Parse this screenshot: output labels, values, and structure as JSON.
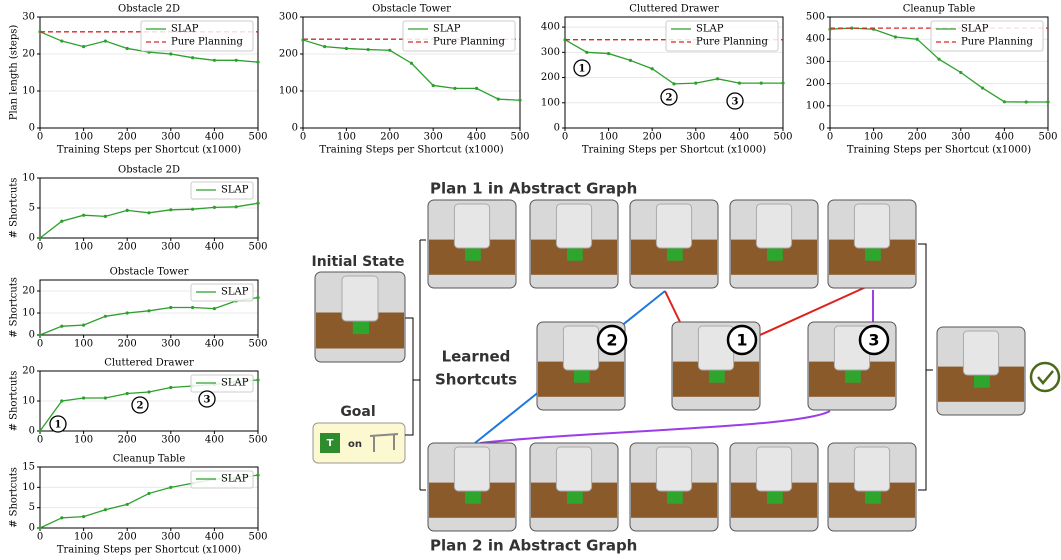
{
  "chart_data": [
    {
      "type": "line",
      "title": "Obstacle 2D",
      "xlabel": "Training Steps per Shortcut (x1000)",
      "ylabel": "Plan length (steps)",
      "x": [
        0,
        50,
        100,
        150,
        200,
        250,
        300,
        350,
        400,
        450,
        500
      ],
      "xlim": [
        0,
        500
      ],
      "xticks": [
        0,
        100,
        200,
        300,
        400,
        500
      ],
      "ylim": [
        0,
        30
      ],
      "yticks": [
        0,
        10,
        20,
        30
      ],
      "grid": true,
      "legend": "upper right",
      "series": [
        {
          "name": "SLAP",
          "color": "#2ca02c",
          "markers": true,
          "values": [
            26,
            23.5,
            22,
            23.5,
            21.5,
            20.5,
            20,
            19,
            18.3,
            18.3,
            17.8
          ]
        },
        {
          "name": "Pure Planning",
          "color": "#d62728",
          "dashed": true,
          "values": [
            26,
            26,
            26,
            26,
            26,
            26,
            26,
            26,
            26,
            26,
            26
          ]
        }
      ]
    },
    {
      "type": "line",
      "title": "Obstacle Tower",
      "xlabel": "Training Steps per Shortcut (x1000)",
      "x": [
        0,
        50,
        100,
        150,
        200,
        250,
        300,
        350,
        400,
        450,
        500
      ],
      "xlim": [
        0,
        500
      ],
      "xticks": [
        0,
        100,
        200,
        300,
        400,
        500
      ],
      "ylim": [
        0,
        300
      ],
      "yticks": [
        0,
        100,
        200,
        300
      ],
      "grid": true,
      "legend": "upper right",
      "series": [
        {
          "name": "SLAP",
          "color": "#2ca02c",
          "markers": true,
          "values": [
            238,
            220,
            215,
            212,
            210,
            175,
            115,
            107,
            107,
            78,
            75
          ]
        },
        {
          "name": "Pure Planning",
          "color": "#d62728",
          "dashed": true,
          "values": [
            240,
            240,
            240,
            240,
            240,
            240,
            240,
            240,
            240,
            240,
            240
          ]
        }
      ]
    },
    {
      "type": "line",
      "title": "Cluttered Drawer",
      "xlabel": "Training Steps per Shortcut (x1000)",
      "x": [
        0,
        50,
        100,
        150,
        200,
        250,
        300,
        350,
        400,
        450,
        500
      ],
      "xlim": [
        0,
        500
      ],
      "xticks": [
        0,
        100,
        200,
        300,
        400,
        500
      ],
      "ylim": [
        0,
        440
      ],
      "yticks": [
        0,
        100,
        200,
        300,
        400
      ],
      "grid": true,
      "legend": "upper right",
      "annotations": [
        "1",
        "2",
        "3"
      ],
      "series": [
        {
          "name": "SLAP",
          "color": "#2ca02c",
          "markers": true,
          "values": [
            350,
            300,
            295,
            268,
            235,
            175,
            178,
            195,
            178,
            178,
            178
          ]
        },
        {
          "name": "Pure Planning",
          "color": "#d62728",
          "dashed": true,
          "values": [
            350,
            350,
            350,
            350,
            350,
            350,
            350,
            350,
            350,
            350,
            350
          ]
        }
      ]
    },
    {
      "type": "line",
      "title": "Cleanup Table",
      "xlabel": "Training Steps per Shortcut (x1000)",
      "x": [
        0,
        50,
        100,
        150,
        200,
        250,
        300,
        350,
        400,
        450,
        500
      ],
      "xlim": [
        0,
        500
      ],
      "xticks": [
        0,
        100,
        200,
        300,
        400,
        500
      ],
      "ylim": [
        0,
        500
      ],
      "yticks": [
        0,
        100,
        200,
        300,
        400,
        500
      ],
      "grid": true,
      "legend": "upper right",
      "series": [
        {
          "name": "SLAP",
          "color": "#2ca02c",
          "markers": true,
          "values": [
            445,
            450,
            445,
            410,
            400,
            310,
            250,
            180,
            118,
            117,
            117
          ]
        },
        {
          "name": "Pure Planning",
          "color": "#d62728",
          "dashed": true,
          "values": [
            450,
            450,
            450,
            450,
            450,
            450,
            450,
            450,
            450,
            450,
            450
          ]
        }
      ]
    },
    {
      "type": "line",
      "title": "Obstacle 2D",
      "ylabel": "# Shortcuts",
      "x": [
        0,
        50,
        100,
        150,
        200,
        250,
        300,
        350,
        400,
        450,
        500
      ],
      "xlim": [
        0,
        500
      ],
      "xticks": [
        0,
        100,
        200,
        300,
        400,
        500
      ],
      "ylim": [
        0,
        10
      ],
      "yticks": [
        0,
        5,
        10
      ],
      "grid": true,
      "legend": "upper right",
      "series": [
        {
          "name": "SLAP",
          "color": "#2ca02c",
          "markers": true,
          "values": [
            0,
            2.8,
            3.8,
            3.6,
            4.6,
            4.2,
            4.7,
            4.8,
            5.1,
            5.2,
            5.8
          ]
        }
      ]
    },
    {
      "type": "line",
      "title": "Obstacle Tower",
      "ylabel": "# Shortcuts",
      "x": [
        0,
        50,
        100,
        150,
        200,
        250,
        300,
        350,
        400,
        450,
        500
      ],
      "xlim": [
        0,
        500
      ],
      "xticks": [
        0,
        100,
        200,
        300,
        400,
        500
      ],
      "ylim": [
        0,
        25
      ],
      "yticks": [
        0,
        10,
        20
      ],
      "grid": true,
      "legend": "upper right",
      "series": [
        {
          "name": "SLAP",
          "color": "#2ca02c",
          "markers": true,
          "values": [
            0,
            4,
            4.5,
            8.5,
            10,
            11,
            12.5,
            12.5,
            12,
            15.5,
            17
          ]
        }
      ]
    },
    {
      "type": "line",
      "title": "Cluttered Drawer",
      "ylabel": "# Shortcuts",
      "x": [
        0,
        50,
        100,
        150,
        200,
        250,
        300,
        350,
        400,
        450,
        500
      ],
      "xlim": [
        0,
        500
      ],
      "xticks": [
        0,
        100,
        200,
        300,
        400,
        500
      ],
      "ylim": [
        0,
        20
      ],
      "yticks": [
        0,
        10,
        20
      ],
      "grid": true,
      "legend": "upper right",
      "annotations": [
        "1",
        "2",
        "3"
      ],
      "series": [
        {
          "name": "SLAP",
          "color": "#2ca02c",
          "markers": true,
          "values": [
            0,
            10,
            11,
            11,
            12.5,
            13,
            14.5,
            15,
            15.5,
            16.5,
            17
          ]
        }
      ]
    },
    {
      "type": "line",
      "title": "Cleanup Table",
      "ylabel": "# Shortcuts",
      "xlabel": "Training Steps per Shortcut (x1000)",
      "x": [
        0,
        50,
        100,
        150,
        200,
        250,
        300,
        350,
        400,
        450,
        500
      ],
      "xlim": [
        0,
        500
      ],
      "xticks": [
        0,
        100,
        200,
        300,
        400,
        500
      ],
      "ylim": [
        0,
        15
      ],
      "yticks": [
        0,
        5,
        10,
        15
      ],
      "grid": true,
      "legend": "upper right",
      "series": [
        {
          "name": "SLAP",
          "color": "#2ca02c",
          "markers": true,
          "values": [
            0,
            2.5,
            2.8,
            4.5,
            5.8,
            8.5,
            10,
            11,
            12,
            12.3,
            13
          ]
        }
      ]
    }
  ],
  "diagram": {
    "plan1_title": "Plan 1 in Abstract Graph",
    "plan2_title": "Plan 2 in Abstract Graph",
    "initial_state": "Initial State",
    "goal": "Goal",
    "goal_block": "T",
    "goal_relation": "on",
    "learned_shortcuts": [
      "Learned",
      "Shortcuts"
    ],
    "shortcut_labels": [
      "2",
      "1",
      "3"
    ]
  }
}
